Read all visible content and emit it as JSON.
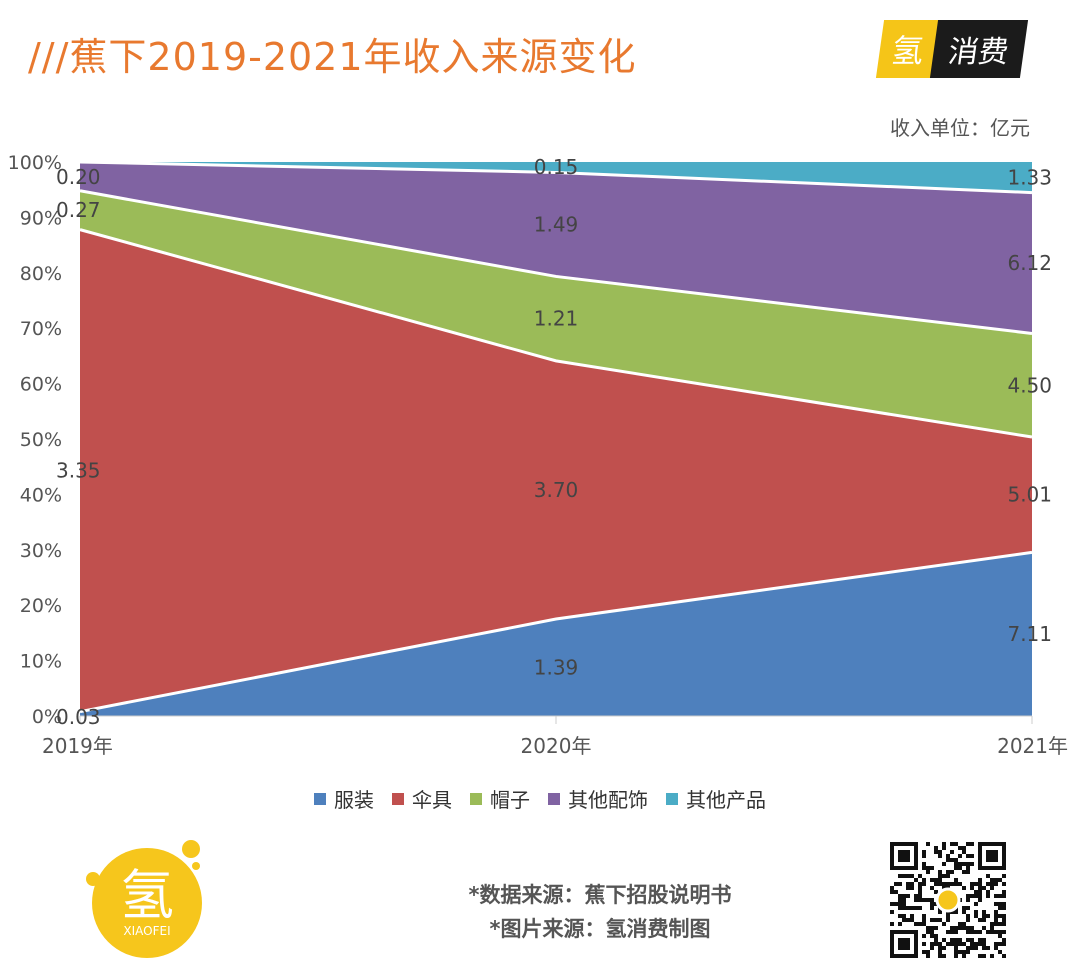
{
  "title": "///蕉下2019-2021年收入来源变化",
  "brand": {
    "char1": "氢",
    "char2": "消费"
  },
  "unit_label": "收入单位：亿元",
  "chart_data": {
    "type": "area",
    "stacked": "percent",
    "categories": [
      "2019年",
      "2020年",
      "2021年"
    ],
    "y_ticks": [
      "0%",
      "10%",
      "20%",
      "30%",
      "40%",
      "50%",
      "60%",
      "70%",
      "80%",
      "90%",
      "100%"
    ],
    "ylim": [
      0,
      100
    ],
    "series": [
      {
        "name": "服装",
        "color": "#4e80bd",
        "values": [
          0.03,
          1.39,
          7.11
        ],
        "labels": [
          "0.03",
          "1.39",
          "7.11"
        ]
      },
      {
        "name": "伞具",
        "color": "#c0504e",
        "values": [
          3.35,
          3.7,
          5.01
        ],
        "labels": [
          "3.35",
          "3.70",
          "5.01"
        ]
      },
      {
        "name": "帽子",
        "color": "#9bbb58",
        "values": [
          0.27,
          1.21,
          4.5
        ],
        "labels": [
          "0.27",
          "1.21",
          "4.50"
        ]
      },
      {
        "name": "其他配饰",
        "color": "#8063a2",
        "values": [
          0.2,
          1.49,
          6.12
        ],
        "labels": [
          "0.20",
          "1.49",
          "6.12"
        ]
      },
      {
        "name": "其他产品",
        "color": "#4bacc6",
        "values": [
          0.0,
          0.15,
          1.33
        ],
        "labels": [
          "",
          "0.15",
          "1.33"
        ]
      }
    ],
    "legend_position": "bottom",
    "grid": false
  },
  "footer": {
    "source_data": "*数据来源：蕉下招股说明书",
    "source_image": "*图片来源：氢消费制图",
    "logo_char": "氢",
    "logo_text": "XIAOFEI"
  }
}
